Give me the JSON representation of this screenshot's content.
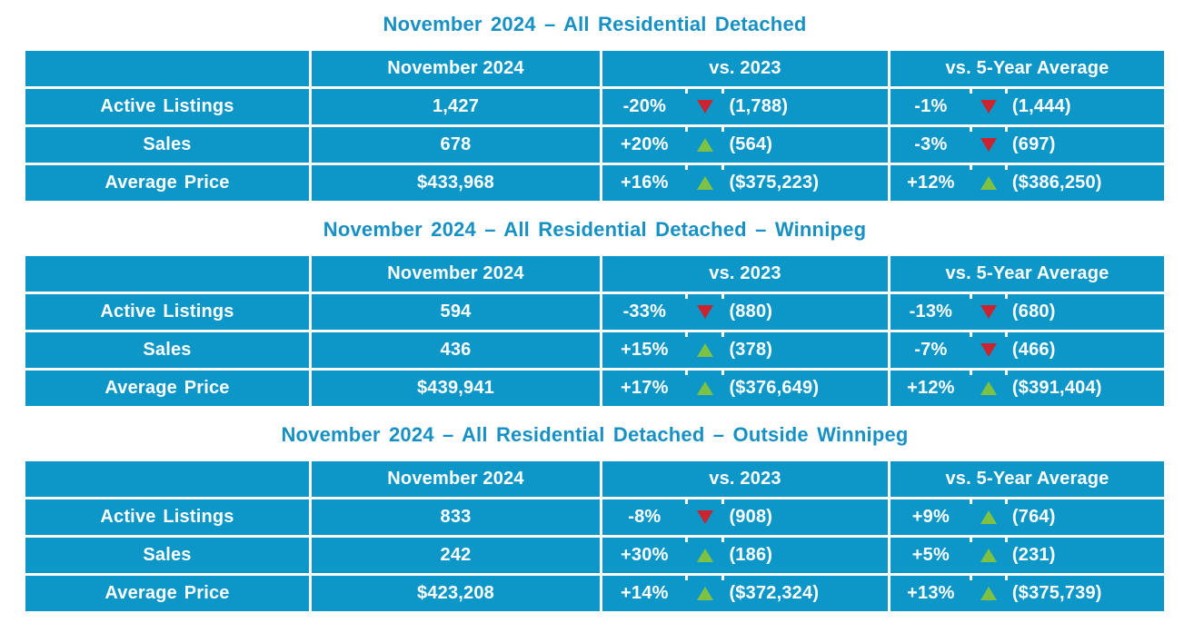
{
  "colors": {
    "table_bg": "#0d96c8",
    "title_text": "#1790c4",
    "cell_text": "#ffffff",
    "up_arrow": "#7dc242",
    "down_arrow": "#c9242f"
  },
  "chart_data": [
    {
      "type": "table",
      "title": "November 2024 – All Residential Detached",
      "columns": [
        "",
        "November 2024",
        "vs. 2023",
        "vs. 5-Year Average"
      ],
      "rows": [
        {
          "label": "Active Listings",
          "nov2024": "1,427",
          "vs_2023": {
            "pct": "-20%",
            "direction": "down",
            "ref": "(1,788)"
          },
          "vs_5yr": {
            "pct": "-1%",
            "direction": "down",
            "ref": "(1,444)"
          }
        },
        {
          "label": "Sales",
          "nov2024": "678",
          "vs_2023": {
            "pct": "+20%",
            "direction": "up",
            "ref": "(564)"
          },
          "vs_5yr": {
            "pct": "-3%",
            "direction": "down",
            "ref": "(697)"
          }
        },
        {
          "label": "Average Price",
          "nov2024": "$433,968",
          "vs_2023": {
            "pct": "+16%",
            "direction": "up",
            "ref": "($375,223)"
          },
          "vs_5yr": {
            "pct": "+12%",
            "direction": "up",
            "ref": "($386,250)"
          }
        }
      ]
    },
    {
      "type": "table",
      "title": "November 2024 – All Residential Detached – Winnipeg",
      "columns": [
        "",
        "November 2024",
        "vs. 2023",
        "vs. 5-Year Average"
      ],
      "rows": [
        {
          "label": "Active Listings",
          "nov2024": "594",
          "vs_2023": {
            "pct": "-33%",
            "direction": "down",
            "ref": "(880)"
          },
          "vs_5yr": {
            "pct": "-13%",
            "direction": "down",
            "ref": "(680)"
          }
        },
        {
          "label": "Sales",
          "nov2024": "436",
          "vs_2023": {
            "pct": "+15%",
            "direction": "up",
            "ref": "(378)"
          },
          "vs_5yr": {
            "pct": "-7%",
            "direction": "down",
            "ref": "(466)"
          }
        },
        {
          "label": "Average Price",
          "nov2024": "$439,941",
          "vs_2023": {
            "pct": "+17%",
            "direction": "up",
            "ref": "($376,649)"
          },
          "vs_5yr": {
            "pct": "+12%",
            "direction": "up",
            "ref": "($391,404)"
          }
        }
      ]
    },
    {
      "type": "table",
      "title": "November 2024 – All Residential Detached – Outside Winnipeg",
      "columns": [
        "",
        "November 2024",
        "vs. 2023",
        "vs. 5-Year Average"
      ],
      "rows": [
        {
          "label": "Active Listings",
          "nov2024": "833",
          "vs_2023": {
            "pct": "-8%",
            "direction": "down",
            "ref": "(908)"
          },
          "vs_5yr": {
            "pct": "+9%",
            "direction": "up",
            "ref": "(764)"
          }
        },
        {
          "label": "Sales",
          "nov2024": "242",
          "vs_2023": {
            "pct": "+30%",
            "direction": "up",
            "ref": "(186)"
          },
          "vs_5yr": {
            "pct": "+5%",
            "direction": "up",
            "ref": "(231)"
          }
        },
        {
          "label": "Average Price",
          "nov2024": "$423,208",
          "vs_2023": {
            "pct": "+14%",
            "direction": "up",
            "ref": "($372,324)"
          },
          "vs_5yr": {
            "pct": "+13%",
            "direction": "up",
            "ref": "($375,739)"
          }
        }
      ]
    }
  ]
}
